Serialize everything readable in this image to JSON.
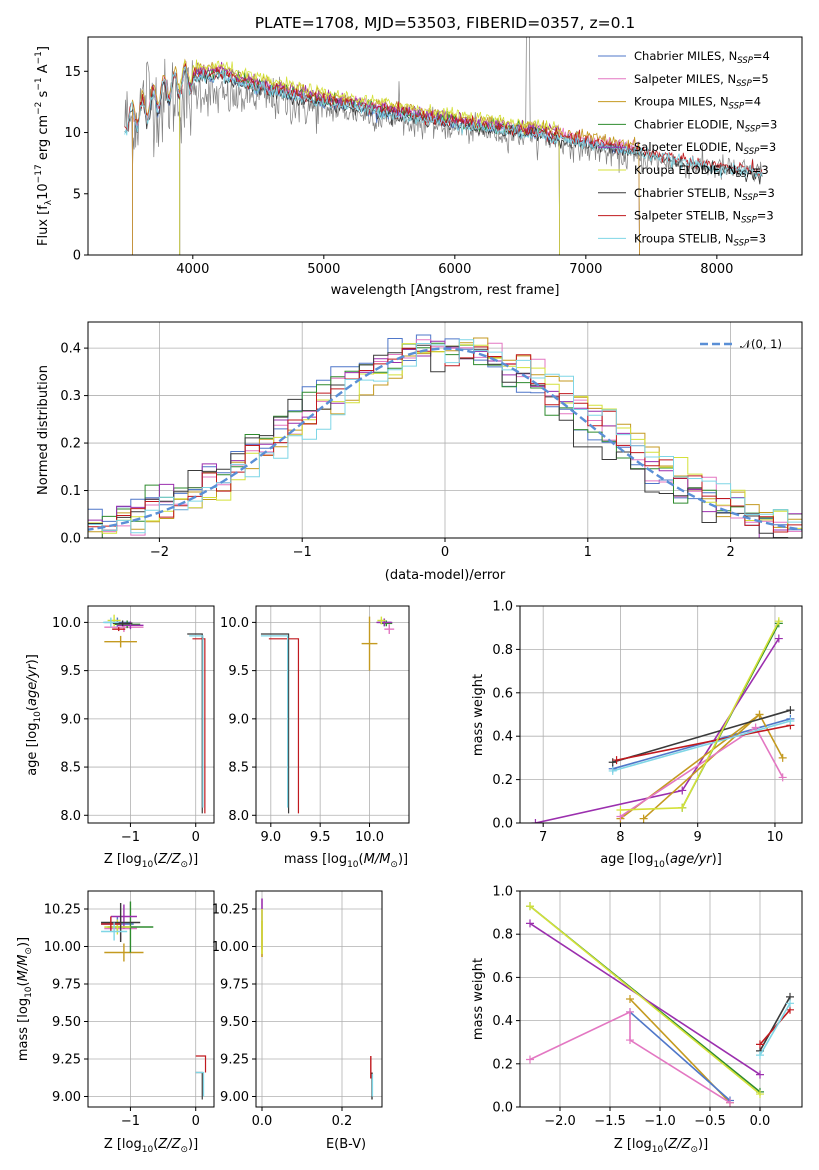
{
  "chart_data": [
    {
      "id": "spectrum",
      "type": "line",
      "title": "PLATE=1708, MJD=53503, FIBERID=0357, z=0.1",
      "xlabel": "wavelength [Angstrom, rest frame]",
      "ylabel_parts": [
        "Flux [f",
        "λ",
        "10",
        "−17",
        " erg cm",
        "−2",
        " s",
        "−1",
        " A",
        "−1",
        "]"
      ],
      "xlim": [
        3200,
        8650
      ],
      "ylim": [
        0,
        17.8
      ],
      "xticks": [
        4000,
        5000,
        6000,
        7000,
        8000
      ],
      "yticks": [
        0,
        5,
        10,
        15
      ],
      "grid": false,
      "legend_position": "top-right",
      "observed_color": "#808080",
      "observed_wavelength": [
        3480,
        3550,
        3650,
        3750,
        3850,
        3950,
        4050,
        4150,
        4300,
        4500,
        4700,
        4900,
        5100,
        5300,
        5500,
        5700,
        5900,
        6100,
        6300,
        6500,
        6700,
        6900,
        7100,
        7300,
        7500,
        7700,
        7900,
        8100,
        8300
      ],
      "observed_flux": [
        11.0,
        10.5,
        13.5,
        12.0,
        13.0,
        12.5,
        13.5,
        13.0,
        12.8,
        13.0,
        12.5,
        12.0,
        11.8,
        11.5,
        11.0,
        10.8,
        10.5,
        10.2,
        10.0,
        9.8,
        9.5,
        9.0,
        8.5,
        8.0,
        7.8,
        7.5,
        7.2,
        7.0,
        6.8
      ],
      "model_wavelength": [
        3480,
        3600,
        3800,
        4000,
        4200,
        4400,
        4600,
        4800,
        5000,
        5200,
        5400,
        5600,
        5800,
        6000,
        6200,
        6400,
        6600,
        6800,
        7000,
        7200,
        7400,
        7600,
        7800,
        8000,
        8200,
        8350
      ],
      "model_flux": [
        11.0,
        11.5,
        13.5,
        14.5,
        14.8,
        14.0,
        13.5,
        13.0,
        12.5,
        12.2,
        11.8,
        11.5,
        11.1,
        10.8,
        10.5,
        10.2,
        10.0,
        9.6,
        9.2,
        8.8,
        8.5,
        8.0,
        7.6,
        7.2,
        6.9,
        6.7
      ],
      "series": [
        {
          "name": "Chabrier MILES",
          "n_ssp": "4",
          "color": "#4f77c9",
          "offset": 0.0,
          "range": [
            3540,
            7410
          ]
        },
        {
          "name": "Salpeter MILES",
          "n_ssp": "5",
          "color": "#e377c2",
          "offset": 0.3,
          "range": [
            3540,
            7410
          ]
        },
        {
          "name": "Kroupa MILES",
          "n_ssp": "4",
          "color": "#c49a20",
          "offset": 0.5,
          "range": [
            3540,
            7410
          ]
        },
        {
          "name": "Chabrier ELODIE",
          "n_ssp": "3",
          "color": "#2e8b2e",
          "offset": 0.2,
          "range": [
            3900,
            6800
          ]
        },
        {
          "name": "Salpeter ELODIE",
          "n_ssp": "3",
          "color": "#9b2fae",
          "offset": 0.4,
          "range": [
            3900,
            6800
          ]
        },
        {
          "name": "Kroupa ELODIE",
          "n_ssp": "3",
          "color": "#d4e13a",
          "offset": 0.7,
          "range": [
            3900,
            6800
          ]
        },
        {
          "name": "Chabrier STELIB",
          "n_ssp": "3",
          "color": "#3a3a3a",
          "offset": -0.2,
          "range": [
            3480,
            8350
          ]
        },
        {
          "name": "Salpeter STELIB",
          "n_ssp": "3",
          "color": "#c0191e",
          "offset": 0.1,
          "range": [
            3480,
            8350
          ]
        },
        {
          "name": "Kroupa STELIB",
          "n_ssp": "3",
          "color": "#7fd6e6",
          "offset": -0.1,
          "range": [
            3480,
            8350
          ]
        }
      ]
    },
    {
      "id": "residuals",
      "type": "histogram",
      "xlabel": "(data-model)/error",
      "ylabel": "Normed distribution",
      "xlim": [
        -2.5,
        2.5
      ],
      "ylim": [
        0,
        0.455
      ],
      "xticks": [
        -2,
        -1,
        0,
        1,
        2
      ],
      "yticks": [
        0.0,
        0.1,
        0.2,
        0.3,
        0.4
      ],
      "grid": true,
      "legend_position": "top-right",
      "reference": {
        "label": "𝒩(0, 1)",
        "color": "#5a8fd6",
        "mean": 0,
        "sigma": 1
      },
      "bin_width": 0.1
    },
    {
      "id": "age-vs-Z",
      "type": "scatter",
      "xlabel": "Z [log10(Z/Z⊙)]",
      "ylabel": "age  [log10(age/yr)]",
      "xlim": [
        -1.65,
        0.28
      ],
      "ylim": [
        7.92,
        10.17
      ],
      "xticks": [
        -1,
        0
      ],
      "yticks": [
        8.0,
        8.5,
        9.0,
        9.5,
        10.0
      ],
      "grid": true
    },
    {
      "id": "age-vs-mass",
      "type": "scatter",
      "xlabel": "mass [log10(M/M⊙)]",
      "xlim": [
        8.85,
        10.4
      ],
      "ylim": [
        7.92,
        10.17
      ],
      "xticks": [
        9.0,
        9.5,
        10.0
      ],
      "yticks": [
        8.0,
        8.5,
        9.0,
        9.5,
        10.0
      ],
      "grid": true
    },
    {
      "id": "weight-vs-age",
      "type": "line",
      "xlabel": "age  [log10(age/yr)]",
      "ylabel": "mass weight",
      "xlim": [
        6.7,
        10.35
      ],
      "ylim": [
        0,
        1.0
      ],
      "xticks": [
        7,
        8,
        9,
        10
      ],
      "yticks": [
        0.0,
        0.2,
        0.4,
        0.6,
        0.8,
        1.0
      ],
      "grid": true
    },
    {
      "id": "mass-vs-Z",
      "type": "scatter",
      "xlabel": "Z [log10(Z/Z⊙)]",
      "ylabel": "mass [log10(M/M⊙)]",
      "xlim": [
        -1.65,
        0.28
      ],
      "ylim": [
        8.93,
        10.37
      ],
      "xticks": [
        -1,
        0
      ],
      "yticks": [
        9.0,
        9.25,
        9.5,
        9.75,
        10.0,
        10.25
      ],
      "ytick_labels": [
        "9.00",
        "9.25",
        "9.50",
        "9.75",
        "10.00",
        "10.25"
      ],
      "grid": true
    },
    {
      "id": "mass-vs-EBV",
      "type": "scatter",
      "xlabel": "E(B-V)",
      "xlim": [
        -0.015,
        0.3
      ],
      "ylim": [
        8.93,
        10.37
      ],
      "xticks": [
        0.0,
        0.2
      ],
      "yticks": [
        9.0,
        9.25,
        9.5,
        9.75,
        10.0,
        10.25
      ],
      "ytick_labels": [
        "9.00",
        "9.25",
        "9.50",
        "9.75",
        "10.00",
        "10.25"
      ],
      "grid": true
    },
    {
      "id": "weight-vs-Z",
      "type": "line",
      "xlabel": "Z [log10(Z/Z⊙)]",
      "ylabel": "mass weight",
      "xlim": [
        -2.4,
        0.42
      ],
      "ylim": [
        0,
        1.0
      ],
      "xticks": [
        -2.0,
        -1.5,
        -1.0,
        -0.5,
        0.0
      ],
      "yticks": [
        0.0,
        0.2,
        0.4,
        0.6,
        0.8,
        1.0
      ],
      "grid": true
    }
  ]
}
